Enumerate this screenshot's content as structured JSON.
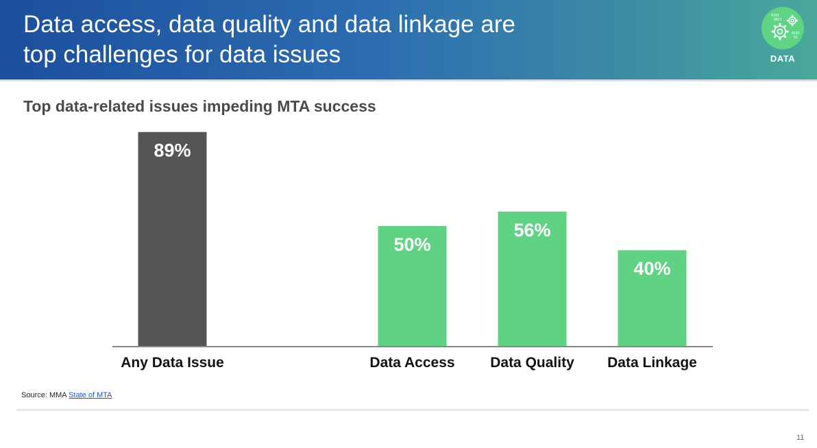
{
  "header": {
    "title_line1": "Data access, data quality and data linkage are",
    "title_line2": "top challenges for data issues",
    "badge_label": "DATA",
    "badge_icon": "gear-data-icon"
  },
  "subtitle": "Top data-related issues impeding MTA success",
  "chart_data": {
    "type": "bar",
    "title": "Top data-related issues impeding MTA success",
    "categories": [
      "Any Data Issue",
      "",
      "Data Access",
      "Data Quality",
      "Data Linkage"
    ],
    "values": [
      89,
      null,
      50,
      56,
      40
    ],
    "data_labels": [
      "89%",
      "",
      "50%",
      "56%",
      "40%"
    ],
    "bar_colors": [
      "#555555",
      "",
      "#5fd383",
      "#5fd383",
      "#5fd383"
    ],
    "ylim": [
      0,
      100
    ],
    "xlabel": "",
    "ylabel": "",
    "grid": false,
    "legend": "none"
  },
  "footer": {
    "source_prefix": "Source: MMA",
    "source_link": "State of MTA",
    "page_number": "11"
  },
  "colors": {
    "header_start": "#1c4f9c",
    "header_end": "#4aa89a",
    "accent_green": "#5fd383",
    "dark_bar": "#555555"
  }
}
